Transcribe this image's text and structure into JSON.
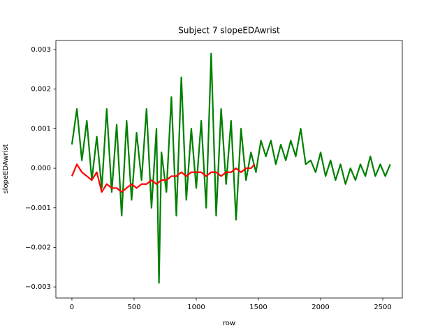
{
  "chart_data": {
    "type": "line",
    "title": "Subject 7 slopeEDAwrist",
    "x_label": "row",
    "y_label": "slopeEDAwrist",
    "xlim": [
      -129,
      2657
    ],
    "xticks": [
      0,
      500,
      1000,
      1500,
      2000,
      2500
    ],
    "ylim": [
      -0.00328,
      0.00323
    ],
    "yticks": [
      {
        "value": -0.003,
        "label": "−0.003"
      },
      {
        "value": -0.002,
        "label": "−0.002"
      },
      {
        "value": -0.001,
        "label": "−0.001"
      },
      {
        "value": 0,
        "label": "0.000"
      },
      0.001,
      0.002,
      0.003
    ],
    "series": [
      {
        "color": "#008000",
        "x": [
          0,
          40,
          80,
          120,
          160,
          200,
          240,
          280,
          320,
          360,
          400,
          440,
          480,
          520,
          560,
          600,
          640,
          680,
          700,
          720,
          760,
          800,
          840,
          880,
          920,
          960,
          1000,
          1040,
          1080,
          1120,
          1160,
          1200,
          1240,
          1280,
          1320,
          1360,
          1400,
          1440,
          1480,
          1520,
          1560,
          1600,
          1640,
          1680,
          1720,
          1760,
          1800,
          1840,
          1880,
          1920,
          1960,
          2000,
          2040,
          2080,
          2120,
          2160,
          2200,
          2240,
          2280,
          2320,
          2360,
          2400,
          2440,
          2480,
          2520,
          2560
        ],
        "values": [
          0.0006,
          0.0015,
          0.0002,
          0.0012,
          -0.0003,
          0.0008,
          -0.0005,
          0.0015,
          -0.0006,
          0.0011,
          -0.0012,
          0.0012,
          -0.0008,
          0.0009,
          -0.0003,
          0.0015,
          -0.001,
          0.001,
          -0.0029,
          0.0004,
          -0.0006,
          0.0018,
          -0.0012,
          0.0023,
          -0.0008,
          0.001,
          -0.0005,
          0.0012,
          -0.001,
          0.0029,
          -0.0012,
          0.0015,
          -0.0004,
          0.0012,
          -0.0013,
          0.001,
          -0.0003,
          0.0004,
          -0.0001,
          0.0007,
          0.0003,
          0.0007,
          0.0001,
          0.0006,
          0.0002,
          0.0007,
          0.0003,
          0.001,
          0.0001,
          0.0002,
          -0.0001,
          0.0004,
          -0.0002,
          0.0002,
          -0.0003,
          0.0001,
          -0.0004,
          0,
          -0.0003,
          0.0001,
          -0.0002,
          0.0003,
          -0.0002,
          0.0001,
          -0.0002,
          0.0001
        ]
      },
      {
        "color": "#ff0000",
        "x": [
          0,
          40,
          80,
          120,
          160,
          200,
          240,
          280,
          320,
          360,
          400,
          440,
          480,
          520,
          560,
          600,
          640,
          680,
          720,
          760,
          800,
          840,
          880,
          920,
          960,
          1000,
          1040,
          1080,
          1120,
          1160,
          1200,
          1240,
          1280,
          1320,
          1360,
          1400,
          1440,
          1470
        ],
        "values": [
          -0.0002,
          0.0001,
          -0.0001,
          -0.0002,
          -0.0003,
          -0.0001,
          -0.0006,
          -0.0004,
          -0.0005,
          -0.0005,
          -0.0006,
          -0.0005,
          -0.0004,
          -0.0005,
          -0.0004,
          -0.0004,
          -0.0003,
          -0.0004,
          -0.0003,
          -0.0003,
          -0.0002,
          -0.0002,
          -0.0001,
          -0.0002,
          -0.0001,
          -0.0001,
          -0.0001,
          -0.0002,
          -0.0001,
          -0.0001,
          -0.0002,
          -0.0001,
          -0.0001,
          0,
          -0.0001,
          0,
          0,
          0.0001
        ]
      }
    ]
  }
}
